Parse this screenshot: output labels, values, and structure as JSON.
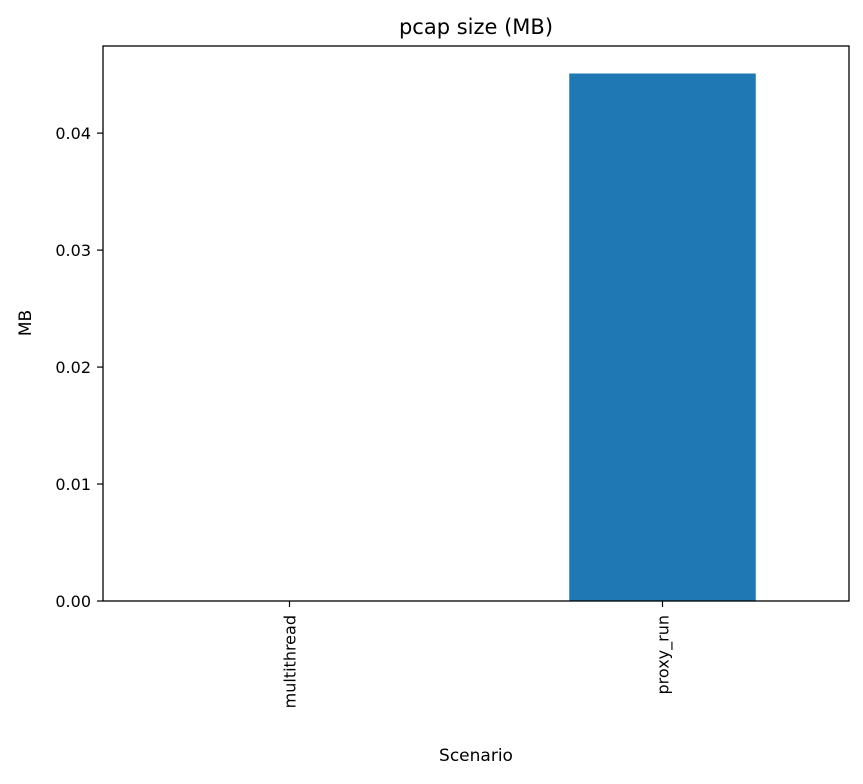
{
  "chart_data": {
    "type": "bar",
    "title": "pcap size (MB)",
    "xlabel": "Scenario",
    "ylabel": "MB",
    "categories": [
      "multithread",
      "proxy_run"
    ],
    "values": [
      0.0,
      0.0451
    ],
    "ylim": [
      0,
      0.04745
    ],
    "yticks": [
      0.0,
      0.01,
      0.02,
      0.03,
      0.04
    ],
    "ytick_labels": [
      "0.00",
      "0.01",
      "0.02",
      "0.03",
      "0.04"
    ],
    "grid": false,
    "legend": "none",
    "bar_color": "#1f77b4"
  }
}
